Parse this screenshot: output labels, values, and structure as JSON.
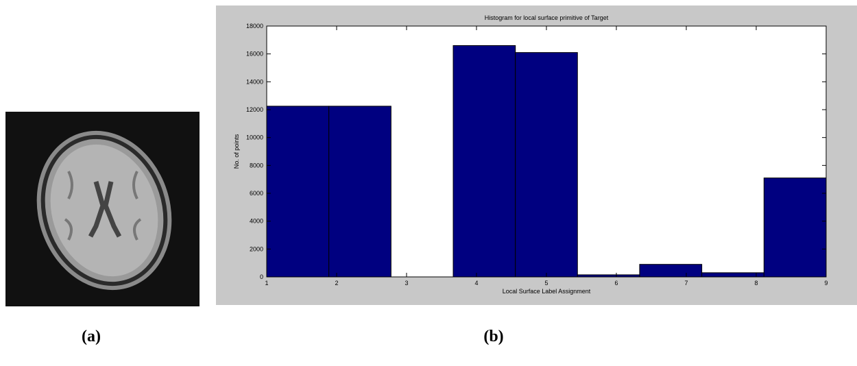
{
  "panel_labels": [
    "(a)",
    "(b)"
  ],
  "chart_data": {
    "type": "histogram",
    "title": "Histogram for local surface primitive of Target",
    "x_label": "Local Surface Label Assignment",
    "y_label": "No. of points",
    "bins": [
      1,
      1.889,
      2.778,
      3.667,
      4.556,
      5.444,
      6.333,
      7.222,
      8.111,
      9
    ],
    "values": [
      12250,
      12250,
      0,
      16600,
      16100,
      150,
      900,
      300,
      7100
    ],
    "color": "#000080",
    "xlim": [
      1,
      9
    ],
    "xticks": [
      1,
      2,
      3,
      4,
      5,
      6,
      7,
      8,
      9
    ],
    "ylim": [
      0,
      18000
    ],
    "yticks": [
      0,
      2000,
      4000,
      6000,
      8000,
      10000,
      12000,
      14000,
      16000,
      18000
    ]
  }
}
